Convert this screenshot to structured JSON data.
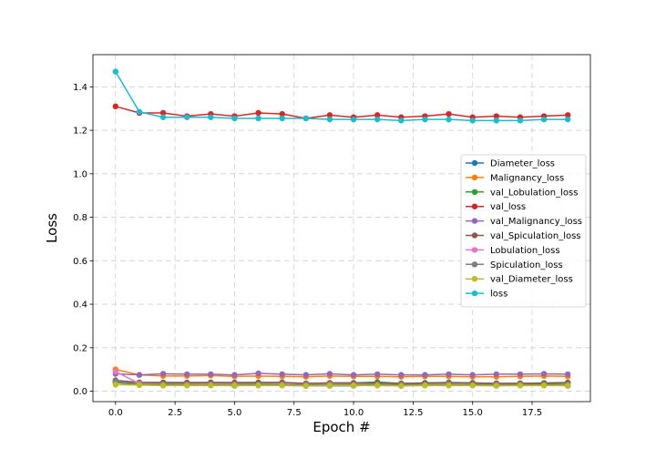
{
  "chart_data": {
    "type": "line",
    "title": "",
    "xlabel": "Epoch #",
    "ylabel": "Loss",
    "xlim": [
      -0.95,
      19.95
    ],
    "ylim": [
      -0.048,
      1.548
    ],
    "xticks": [
      0.0,
      2.5,
      5.0,
      7.5,
      10.0,
      12.5,
      15.0,
      17.5
    ],
    "xtick_labels": [
      "0.0",
      "2.5",
      "5.0",
      "7.5",
      "10.0",
      "12.5",
      "15.0",
      "17.5"
    ],
    "yticks": [
      0.0,
      0.2,
      0.4,
      0.6,
      0.8,
      1.0,
      1.2,
      1.4
    ],
    "ytick_labels": [
      "0.0",
      "0.2",
      "0.4",
      "0.6",
      "0.8",
      "1.0",
      "1.2",
      "1.4"
    ],
    "grid": true,
    "legend_position": "center-right",
    "x": [
      0,
      1,
      2,
      3,
      4,
      5,
      6,
      7,
      8,
      9,
      10,
      11,
      12,
      13,
      14,
      15,
      16,
      17,
      18,
      19
    ],
    "series": [
      {
        "name": "Diameter_loss",
        "color": "#1f77b4",
        "values": [
          0.04,
          0.03,
          0.03,
          0.03,
          0.03,
          0.025,
          0.03,
          0.03,
          0.025,
          0.025,
          0.025,
          0.03,
          0.025,
          0.03,
          0.03,
          0.03,
          0.025,
          0.03,
          0.03,
          0.025
        ]
      },
      {
        "name": "Malignancy_loss",
        "color": "#ff7f0e",
        "values": [
          0.1,
          0.075,
          0.07,
          0.07,
          0.072,
          0.068,
          0.07,
          0.068,
          0.066,
          0.07,
          0.068,
          0.068,
          0.066,
          0.068,
          0.068,
          0.066,
          0.066,
          0.068,
          0.07,
          0.068
        ]
      },
      {
        "name": "val_Lobulation_loss",
        "color": "#2ca02c",
        "values": [
          0.04,
          0.04,
          0.04,
          0.038,
          0.04,
          0.038,
          0.04,
          0.04,
          0.036,
          0.038,
          0.038,
          0.042,
          0.036,
          0.038,
          0.04,
          0.038,
          0.036,
          0.036,
          0.038,
          0.04
        ]
      },
      {
        "name": "val_loss",
        "color": "#d62728",
        "values": [
          1.31,
          1.28,
          1.28,
          1.265,
          1.275,
          1.265,
          1.28,
          1.275,
          1.255,
          1.27,
          1.26,
          1.27,
          1.26,
          1.265,
          1.275,
          1.26,
          1.265,
          1.26,
          1.265,
          1.27
        ]
      },
      {
        "name": "val_Malignancy_loss",
        "color": "#9467bd",
        "values": [
          0.08,
          0.075,
          0.08,
          0.078,
          0.078,
          0.075,
          0.082,
          0.078,
          0.075,
          0.08,
          0.075,
          0.078,
          0.075,
          0.075,
          0.078,
          0.075,
          0.078,
          0.078,
          0.08,
          0.078
        ]
      },
      {
        "name": "val_Spiculation_loss",
        "color": "#8c564b",
        "values": [
          0.05,
          0.04,
          0.04,
          0.04,
          0.04,
          0.04,
          0.04,
          0.04,
          0.035,
          0.038,
          0.038,
          0.038,
          0.035,
          0.038,
          0.038,
          0.038,
          0.036,
          0.036,
          0.036,
          0.038
        ]
      },
      {
        "name": "Lobulation_loss",
        "color": "#e377c2",
        "values": [
          0.09,
          0.035,
          0.032,
          0.032,
          0.032,
          0.032,
          0.032,
          0.032,
          0.03,
          0.032,
          0.03,
          0.032,
          0.03,
          0.03,
          0.032,
          0.03,
          0.03,
          0.03,
          0.03,
          0.03
        ]
      },
      {
        "name": "Spiculation_loss",
        "color": "#7f7f7f",
        "values": [
          0.045,
          0.03,
          0.032,
          0.03,
          0.03,
          0.03,
          0.032,
          0.03,
          0.028,
          0.03,
          0.03,
          0.032,
          0.03,
          0.03,
          0.03,
          0.03,
          0.03,
          0.03,
          0.03,
          0.03
        ]
      },
      {
        "name": "val_Diameter_loss",
        "color": "#bcbd22",
        "values": [
          0.03,
          0.028,
          0.026,
          0.026,
          0.026,
          0.026,
          0.026,
          0.026,
          0.024,
          0.026,
          0.026,
          0.026,
          0.024,
          0.026,
          0.026,
          0.026,
          0.025,
          0.026,
          0.026,
          0.026
        ]
      },
      {
        "name": "loss",
        "color": "#17becf",
        "values": [
          1.47,
          1.285,
          1.26,
          1.26,
          1.26,
          1.255,
          1.255,
          1.255,
          1.255,
          1.25,
          1.25,
          1.25,
          1.245,
          1.25,
          1.25,
          1.245,
          1.245,
          1.245,
          1.25,
          1.25
        ]
      }
    ]
  }
}
